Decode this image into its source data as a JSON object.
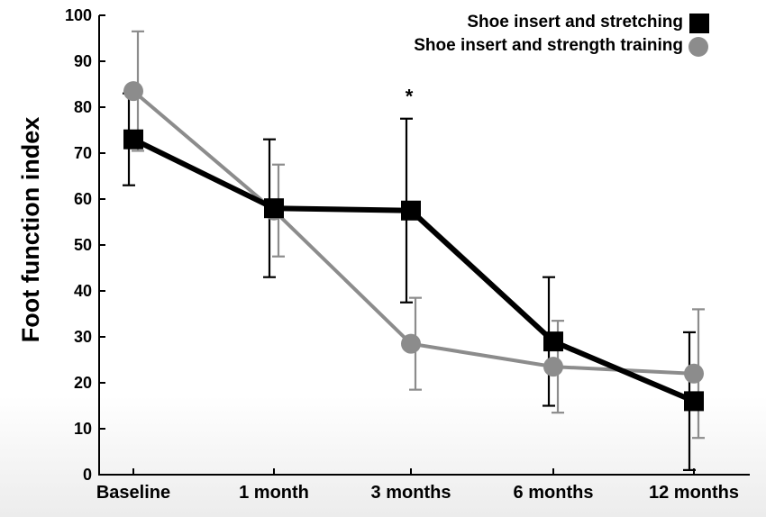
{
  "chart_data": {
    "type": "line",
    "categories": [
      "Baseline",
      "1 month",
      "3 months",
      "6 months",
      "12 months"
    ],
    "ylabel": "Foot function index",
    "xlabel": "",
    "ylim": [
      0,
      100
    ],
    "yticks": [
      0,
      10,
      20,
      30,
      40,
      50,
      60,
      70,
      80,
      90,
      100
    ],
    "grid": false,
    "legend_position": "top-right",
    "series": [
      {
        "name": "Shoe insert and stretching",
        "marker": "square",
        "color": "#000000",
        "values": [
          73,
          58,
          57.5,
          29,
          16
        ],
        "error_high": [
          83,
          73,
          77.5,
          43,
          31
        ],
        "error_low": [
          63,
          43,
          37.5,
          15,
          1
        ]
      },
      {
        "name": "Shoe insert and strength training",
        "marker": "circle",
        "color": "#8c8c8c",
        "values": [
          83.5,
          57.5,
          28.5,
          23.5,
          22
        ],
        "error_high": [
          96.5,
          67.5,
          38.5,
          33.5,
          36
        ],
        "error_low": [
          70.5,
          47.5,
          18.5,
          13.5,
          8
        ]
      }
    ],
    "annotations": [
      {
        "text": "*",
        "category": "3 months",
        "y": 84
      }
    ]
  }
}
